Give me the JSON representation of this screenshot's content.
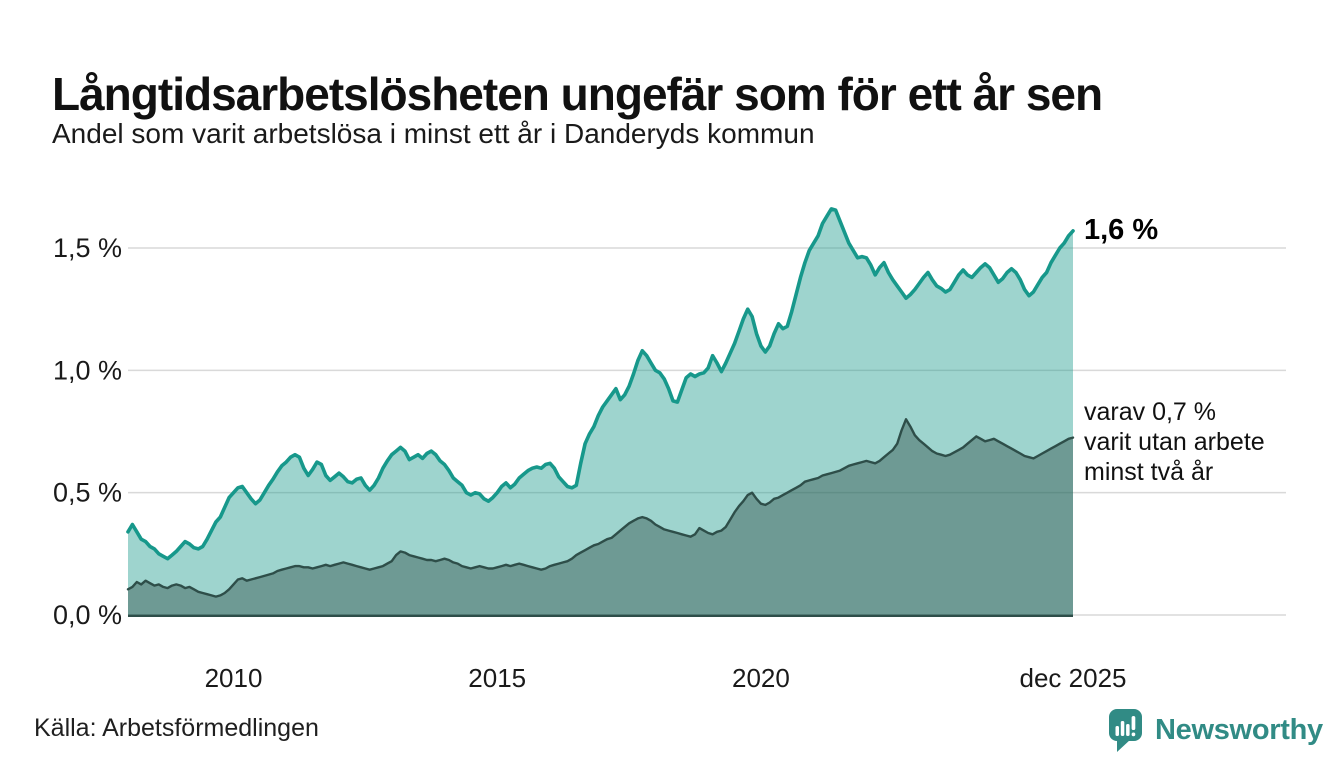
{
  "header": {
    "title": "Långtidsarbetslösheten ungefär som för ett år sen",
    "subtitle": "Andel som varit arbetslösa i minst ett år i Danderyds kommun"
  },
  "chart": {
    "y_ticks": [
      {
        "label": "1,5 %",
        "value": 1.5
      },
      {
        "label": "1,0 %",
        "value": 1.0
      },
      {
        "label": "0,5 %",
        "value": 0.5
      },
      {
        "label": "0,0 %",
        "value": 0.0
      }
    ],
    "x_ticks": [
      {
        "label": "2010",
        "value": 2010
      },
      {
        "label": "2015",
        "value": 2015
      },
      {
        "label": "2020",
        "value": 2020
      },
      {
        "label": "dec 2025",
        "value": 2025.9167
      }
    ]
  },
  "annotations": {
    "latest_value": "1,6 %",
    "two_years_lines": [
      "varav 0,7 %",
      "varit utan arbete",
      "minst två år"
    ]
  },
  "footer": {
    "source": "Källa: Arbetsförmedlingen",
    "brand": "Newsworthy"
  },
  "colors": {
    "accent_teal": "#17988b",
    "series1_line": "#17988b",
    "series1_fill": "rgba(23,152,139,0.42)",
    "series2_line": "#2e4e49",
    "series2_fill": "rgba(46,78,73,0.43)",
    "gridline": "#d9d9d9",
    "axis_text": "#1a1a1a",
    "logo_teal": "#318b85"
  },
  "icons": {
    "logo_icon": "speech-bubble-bar-chart-exclamation"
  },
  "chart_data": {
    "type": "area",
    "title": "Långtidsarbetslösheten ungefär som för ett år sen",
    "subtitle": "Andel som varit arbetslösa i minst ett år i Danderyds kommun",
    "x_range": [
      2008,
      2025.9167
    ],
    "x_resolution": "monthly",
    "ylim": [
      0,
      1.72
    ],
    "grid": "horizontal",
    "legend_position": "none",
    "series": [
      {
        "name": "Andel arbetslösa minst ett år",
        "latest_label": "1,6 %",
        "start_year": 2008,
        "points_per_year": 12,
        "values": [
          0.34,
          0.37,
          0.34,
          0.31,
          0.3,
          0.28,
          0.27,
          0.25,
          0.24,
          0.23,
          0.245,
          0.26,
          0.28,
          0.3,
          0.29,
          0.275,
          0.27,
          0.28,
          0.31,
          0.345,
          0.38,
          0.4,
          0.44,
          0.48,
          0.5,
          0.52,
          0.525,
          0.5,
          0.475,
          0.455,
          0.47,
          0.5,
          0.53,
          0.555,
          0.585,
          0.61,
          0.625,
          0.645,
          0.655,
          0.645,
          0.6,
          0.57,
          0.595,
          0.625,
          0.615,
          0.57,
          0.55,
          0.565,
          0.58,
          0.565,
          0.545,
          0.54,
          0.555,
          0.56,
          0.53,
          0.51,
          0.53,
          0.56,
          0.6,
          0.63,
          0.655,
          0.67,
          0.685,
          0.67,
          0.635,
          0.645,
          0.655,
          0.64,
          0.66,
          0.67,
          0.655,
          0.63,
          0.615,
          0.59,
          0.56,
          0.545,
          0.53,
          0.5,
          0.49,
          0.5,
          0.495,
          0.475,
          0.465,
          0.48,
          0.5,
          0.525,
          0.54,
          0.52,
          0.535,
          0.56,
          0.575,
          0.59,
          0.6,
          0.605,
          0.6,
          0.615,
          0.62,
          0.6,
          0.565,
          0.545,
          0.525,
          0.52,
          0.53,
          0.62,
          0.7,
          0.74,
          0.77,
          0.815,
          0.85,
          0.875,
          0.9,
          0.925,
          0.88,
          0.9,
          0.935,
          0.985,
          1.04,
          1.08,
          1.06,
          1.03,
          1.0,
          0.99,
          0.965,
          0.925,
          0.875,
          0.87,
          0.92,
          0.97,
          0.985,
          0.975,
          0.985,
          0.99,
          1.01,
          1.06,
          1.03,
          0.995,
          1.03,
          1.07,
          1.11,
          1.16,
          1.21,
          1.25,
          1.22,
          1.15,
          1.1,
          1.075,
          1.1,
          1.15,
          1.19,
          1.17,
          1.18,
          1.24,
          1.31,
          1.38,
          1.44,
          1.49,
          1.52,
          1.55,
          1.6,
          1.63,
          1.66,
          1.655,
          1.61,
          1.565,
          1.52,
          1.49,
          1.46,
          1.465,
          1.46,
          1.43,
          1.39,
          1.42,
          1.44,
          1.4,
          1.37,
          1.345,
          1.32,
          1.295,
          1.31,
          1.33,
          1.355,
          1.38,
          1.4,
          1.37,
          1.345,
          1.335,
          1.32,
          1.33,
          1.36,
          1.39,
          1.41,
          1.39,
          1.38,
          1.4,
          1.42,
          1.435,
          1.42,
          1.39,
          1.36,
          1.375,
          1.4,
          1.415,
          1.4,
          1.37,
          1.33,
          1.305,
          1.32,
          1.35,
          1.38,
          1.4,
          1.44,
          1.47,
          1.5,
          1.52,
          1.55,
          1.57
        ]
      },
      {
        "name": "varav utan arbete minst två år",
        "latest_label": "0,7 %",
        "start_year": 2008,
        "points_per_year": 12,
        "values": [
          0.105,
          0.115,
          0.135,
          0.125,
          0.14,
          0.13,
          0.12,
          0.125,
          0.115,
          0.11,
          0.12,
          0.125,
          0.12,
          0.11,
          0.115,
          0.105,
          0.095,
          0.09,
          0.085,
          0.08,
          0.075,
          0.08,
          0.09,
          0.105,
          0.125,
          0.145,
          0.15,
          0.14,
          0.145,
          0.15,
          0.155,
          0.16,
          0.165,
          0.17,
          0.18,
          0.185,
          0.19,
          0.195,
          0.2,
          0.2,
          0.195,
          0.195,
          0.19,
          0.195,
          0.2,
          0.205,
          0.2,
          0.205,
          0.21,
          0.215,
          0.21,
          0.205,
          0.2,
          0.195,
          0.19,
          0.185,
          0.19,
          0.195,
          0.2,
          0.21,
          0.22,
          0.245,
          0.26,
          0.255,
          0.245,
          0.24,
          0.235,
          0.23,
          0.225,
          0.225,
          0.22,
          0.225,
          0.23,
          0.225,
          0.215,
          0.21,
          0.2,
          0.195,
          0.19,
          0.195,
          0.2,
          0.195,
          0.19,
          0.19,
          0.195,
          0.2,
          0.205,
          0.2,
          0.205,
          0.21,
          0.205,
          0.2,
          0.195,
          0.19,
          0.185,
          0.19,
          0.2,
          0.205,
          0.21,
          0.215,
          0.22,
          0.23,
          0.245,
          0.255,
          0.265,
          0.275,
          0.285,
          0.29,
          0.3,
          0.31,
          0.315,
          0.33,
          0.345,
          0.36,
          0.375,
          0.385,
          0.395,
          0.4,
          0.395,
          0.385,
          0.37,
          0.36,
          0.35,
          0.345,
          0.34,
          0.335,
          0.33,
          0.325,
          0.32,
          0.33,
          0.355,
          0.345,
          0.335,
          0.33,
          0.34,
          0.345,
          0.36,
          0.39,
          0.42,
          0.445,
          0.465,
          0.49,
          0.5,
          0.475,
          0.455,
          0.45,
          0.46,
          0.475,
          0.48,
          0.49,
          0.5,
          0.51,
          0.52,
          0.53,
          0.545,
          0.55,
          0.555,
          0.56,
          0.57,
          0.575,
          0.58,
          0.585,
          0.59,
          0.6,
          0.61,
          0.615,
          0.62,
          0.625,
          0.63,
          0.625,
          0.62,
          0.63,
          0.645,
          0.66,
          0.675,
          0.7,
          0.755,
          0.8,
          0.77,
          0.735,
          0.715,
          0.7,
          0.685,
          0.67,
          0.66,
          0.655,
          0.65,
          0.655,
          0.665,
          0.675,
          0.685,
          0.7,
          0.715,
          0.73,
          0.72,
          0.71,
          0.715,
          0.72,
          0.71,
          0.7,
          0.69,
          0.68,
          0.67,
          0.66,
          0.65,
          0.645,
          0.64,
          0.65,
          0.66,
          0.67,
          0.68,
          0.69,
          0.7,
          0.71,
          0.72,
          0.725
        ]
      }
    ]
  }
}
